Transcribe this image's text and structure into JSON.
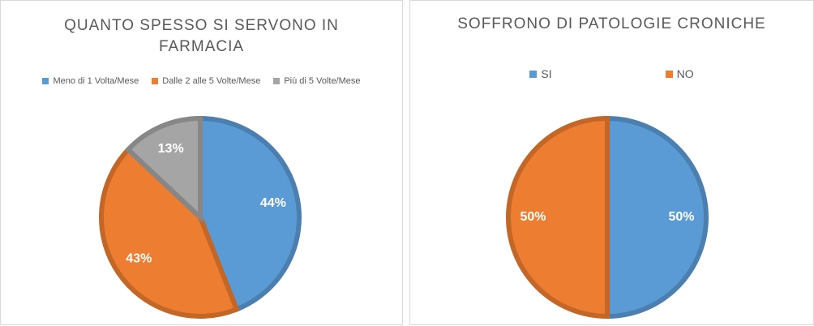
{
  "chart_data": [
    {
      "type": "pie",
      "title": "QUANTO SPESSO SI SERVONO IN FARMACIA",
      "categories": [
        "Meno di 1 Volta/Mese",
        "Dalle 2 alle 5 Volte/Mese",
        "Più di 5 Volte/Mese"
      ],
      "values": [
        44,
        43,
        13
      ],
      "value_labels": [
        "44%",
        "43%",
        "13%"
      ],
      "colors": [
        "#5b9bd5",
        "#ed7d31",
        "#a5a5a5"
      ],
      "legend": "top"
    },
    {
      "type": "pie",
      "title": "SOFFRONO DI PATOLOGIE CRONICHE",
      "categories": [
        "SI",
        "NO"
      ],
      "values": [
        50,
        50
      ],
      "value_labels": [
        "50%",
        "50%"
      ],
      "colors": [
        "#5b9bd5",
        "#ed7d31"
      ],
      "legend": "top"
    }
  ]
}
